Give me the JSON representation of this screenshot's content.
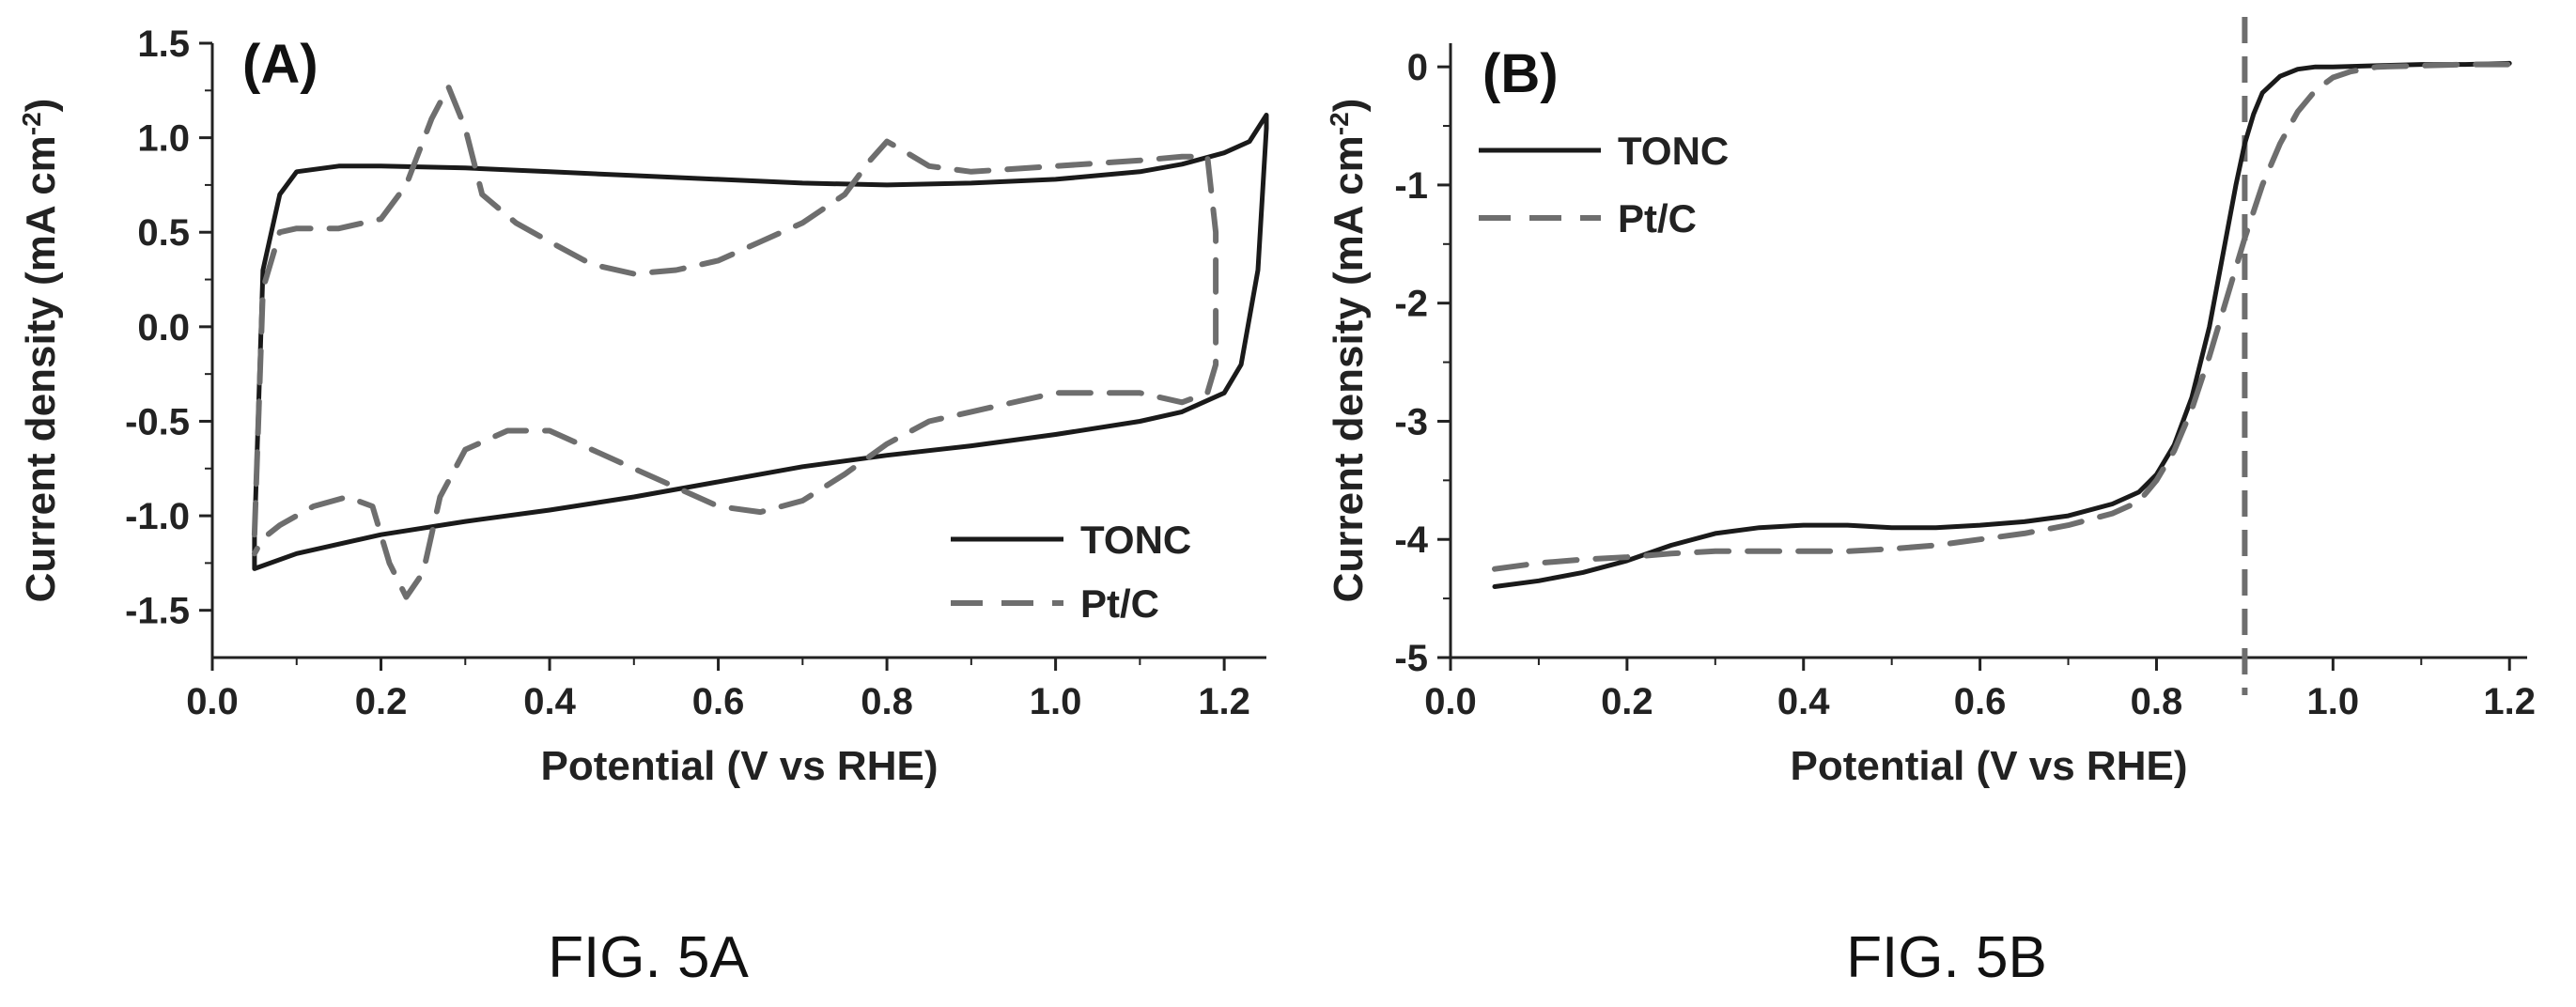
{
  "chart_data": [
    {
      "type": "line",
      "panel_label": "(A)",
      "caption": "FIG. 5A",
      "xlabel": "Potential (V vs RHE)",
      "ylabel": "Current density (mA cm-2)",
      "ylabel_base": "Current density (mA cm",
      "ylabel_sup": "-2",
      "ylabel_end": ")",
      "xlim": [
        0.0,
        1.25
      ],
      "ylim": [
        -1.75,
        1.5
      ],
      "xticks": [
        "0.0",
        "0.2",
        "0.4",
        "0.6",
        "0.8",
        "1.0",
        "1.2"
      ],
      "yticks": [
        "-1.5",
        "-1.0",
        "-0.5",
        "0.0",
        "0.5",
        "1.0",
        "1.5"
      ],
      "grid": false,
      "legend_position": "bottom-right",
      "series": [
        {
          "name": "TONC",
          "style": "solid",
          "color": "#1a1a1a",
          "x": [
            0.05,
            0.06,
            0.08,
            0.1,
            0.15,
            0.2,
            0.3,
            0.4,
            0.5,
            0.6,
            0.7,
            0.8,
            0.9,
            1.0,
            1.1,
            1.15,
            1.2,
            1.23,
            1.25,
            1.25,
            1.24,
            1.22,
            1.2,
            1.15,
            1.1,
            1.0,
            0.9,
            0.8,
            0.7,
            0.6,
            0.5,
            0.4,
            0.3,
            0.2,
            0.1,
            0.05,
            0.05
          ],
          "y": [
            -1.1,
            0.3,
            0.7,
            0.82,
            0.85,
            0.85,
            0.84,
            0.82,
            0.8,
            0.78,
            0.76,
            0.75,
            0.76,
            0.78,
            0.82,
            0.86,
            0.92,
            0.98,
            1.12,
            1.05,
            0.3,
            -0.2,
            -0.35,
            -0.45,
            -0.5,
            -0.57,
            -0.63,
            -0.68,
            -0.74,
            -0.82,
            -0.9,
            -0.97,
            -1.03,
            -1.1,
            -1.2,
            -1.28,
            -1.1
          ]
        },
        {
          "name": "Pt/C",
          "style": "dashed",
          "color": "#6e6e6e",
          "x": [
            0.05,
            0.06,
            0.08,
            0.1,
            0.15,
            0.2,
            0.23,
            0.26,
            0.28,
            0.3,
            0.32,
            0.36,
            0.4,
            0.45,
            0.5,
            0.55,
            0.6,
            0.65,
            0.7,
            0.75,
            0.78,
            0.8,
            0.82,
            0.85,
            0.9,
            1.0,
            1.1,
            1.15,
            1.18,
            1.19,
            1.19,
            1.18,
            1.15,
            1.1,
            1.0,
            0.9,
            0.85,
            0.8,
            0.75,
            0.7,
            0.65,
            0.6,
            0.55,
            0.5,
            0.45,
            0.4,
            0.35,
            0.3,
            0.27,
            0.25,
            0.23,
            0.21,
            0.19,
            0.16,
            0.12,
            0.08,
            0.06,
            0.05
          ],
          "y": [
            -1.1,
            0.2,
            0.5,
            0.52,
            0.52,
            0.57,
            0.75,
            1.1,
            1.27,
            1.05,
            0.7,
            0.55,
            0.45,
            0.33,
            0.28,
            0.3,
            0.35,
            0.45,
            0.55,
            0.7,
            0.88,
            0.98,
            0.93,
            0.85,
            0.82,
            0.85,
            0.88,
            0.9,
            0.9,
            0.5,
            -0.2,
            -0.35,
            -0.4,
            -0.35,
            -0.35,
            -0.45,
            -0.5,
            -0.62,
            -0.78,
            -0.92,
            -0.98,
            -0.95,
            -0.85,
            -0.75,
            -0.65,
            -0.55,
            -0.55,
            -0.65,
            -0.9,
            -1.3,
            -1.43,
            -1.25,
            -0.95,
            -0.9,
            -0.95,
            -1.05,
            -1.12,
            -1.2
          ]
        }
      ]
    },
    {
      "type": "line",
      "panel_label": "(B)",
      "caption": "FIG. 5B",
      "xlabel": "Potential (V vs RHE)",
      "ylabel": "Current density (mA cm-2)",
      "ylabel_base": "Current density (mA cm",
      "ylabel_sup": "-2",
      "ylabel_end": ")",
      "xlim": [
        0.0,
        1.22
      ],
      "ylim": [
        -5,
        0.2
      ],
      "xticks": [
        "0.0",
        "0.2",
        "0.4",
        "0.6",
        "0.8",
        "1.0",
        "1.2"
      ],
      "yticks": [
        "0",
        "-1",
        "-2",
        "-3",
        "-4",
        "-5"
      ],
      "grid": false,
      "legend_position": "top-left",
      "vline_x": 0.9,
      "series": [
        {
          "name": "TONC",
          "style": "solid",
          "color": "#1a1a1a",
          "x": [
            0.05,
            0.1,
            0.15,
            0.2,
            0.25,
            0.3,
            0.35,
            0.4,
            0.45,
            0.5,
            0.55,
            0.6,
            0.65,
            0.7,
            0.75,
            0.78,
            0.8,
            0.82,
            0.84,
            0.86,
            0.87,
            0.88,
            0.89,
            0.9,
            0.91,
            0.92,
            0.94,
            0.96,
            0.98,
            1.0,
            1.05,
            1.1,
            1.15,
            1.2
          ],
          "y": [
            -4.4,
            -4.35,
            -4.28,
            -4.18,
            -4.05,
            -3.95,
            -3.9,
            -3.88,
            -3.88,
            -3.9,
            -3.9,
            -3.88,
            -3.85,
            -3.8,
            -3.7,
            -3.6,
            -3.45,
            -3.2,
            -2.8,
            -2.2,
            -1.8,
            -1.4,
            -1.0,
            -0.65,
            -0.4,
            -0.22,
            -0.08,
            -0.02,
            0.0,
            0.0,
            0.01,
            0.02,
            0.02,
            0.03
          ]
        },
        {
          "name": "Pt/C",
          "style": "dashed",
          "color": "#6e6e6e",
          "x": [
            0.05,
            0.1,
            0.15,
            0.2,
            0.25,
            0.3,
            0.35,
            0.4,
            0.45,
            0.5,
            0.55,
            0.6,
            0.65,
            0.7,
            0.75,
            0.78,
            0.8,
            0.82,
            0.84,
            0.86,
            0.88,
            0.9,
            0.92,
            0.94,
            0.96,
            0.98,
            1.0,
            1.02,
            1.05,
            1.1,
            1.15,
            1.2
          ],
          "y": [
            -4.25,
            -4.2,
            -4.17,
            -4.15,
            -4.12,
            -4.1,
            -4.1,
            -4.1,
            -4.1,
            -4.08,
            -4.05,
            -4.0,
            -3.95,
            -3.88,
            -3.78,
            -3.68,
            -3.5,
            -3.25,
            -2.9,
            -2.45,
            -1.95,
            -1.45,
            -1.0,
            -0.65,
            -0.38,
            -0.2,
            -0.09,
            -0.04,
            0.0,
            0.01,
            0.02,
            0.02
          ]
        }
      ]
    }
  ]
}
